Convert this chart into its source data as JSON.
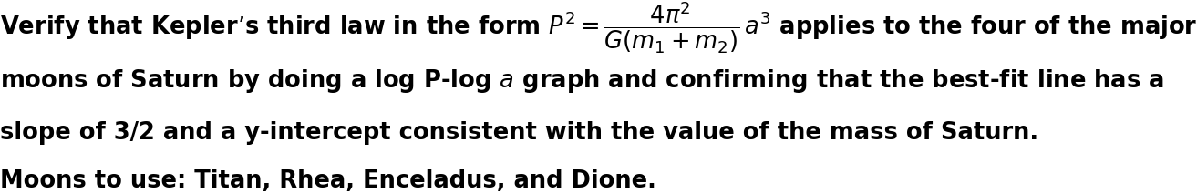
{
  "background_color": "#ffffff",
  "text_color": "#000000",
  "font_size": 18.5,
  "fig_width": 12.0,
  "fig_height": 2.3,
  "line1_text": "Verify that Kepler’s third law in the form $P^2 = \\dfrac{4\\pi^2}{G(m_1+m_2)}\\,a^3$ applies to the four of the major",
  "line2_text": "moons of Saturn by doing a log P-log $a$ graph and confirming that the best-fit line has a",
  "line3_text": "slope of 3/2 and a y-intercept consistent with the value of the mass of Saturn.",
  "line4_text": "Moons to use: Titan, Rhea, Enceladus, and Dione."
}
